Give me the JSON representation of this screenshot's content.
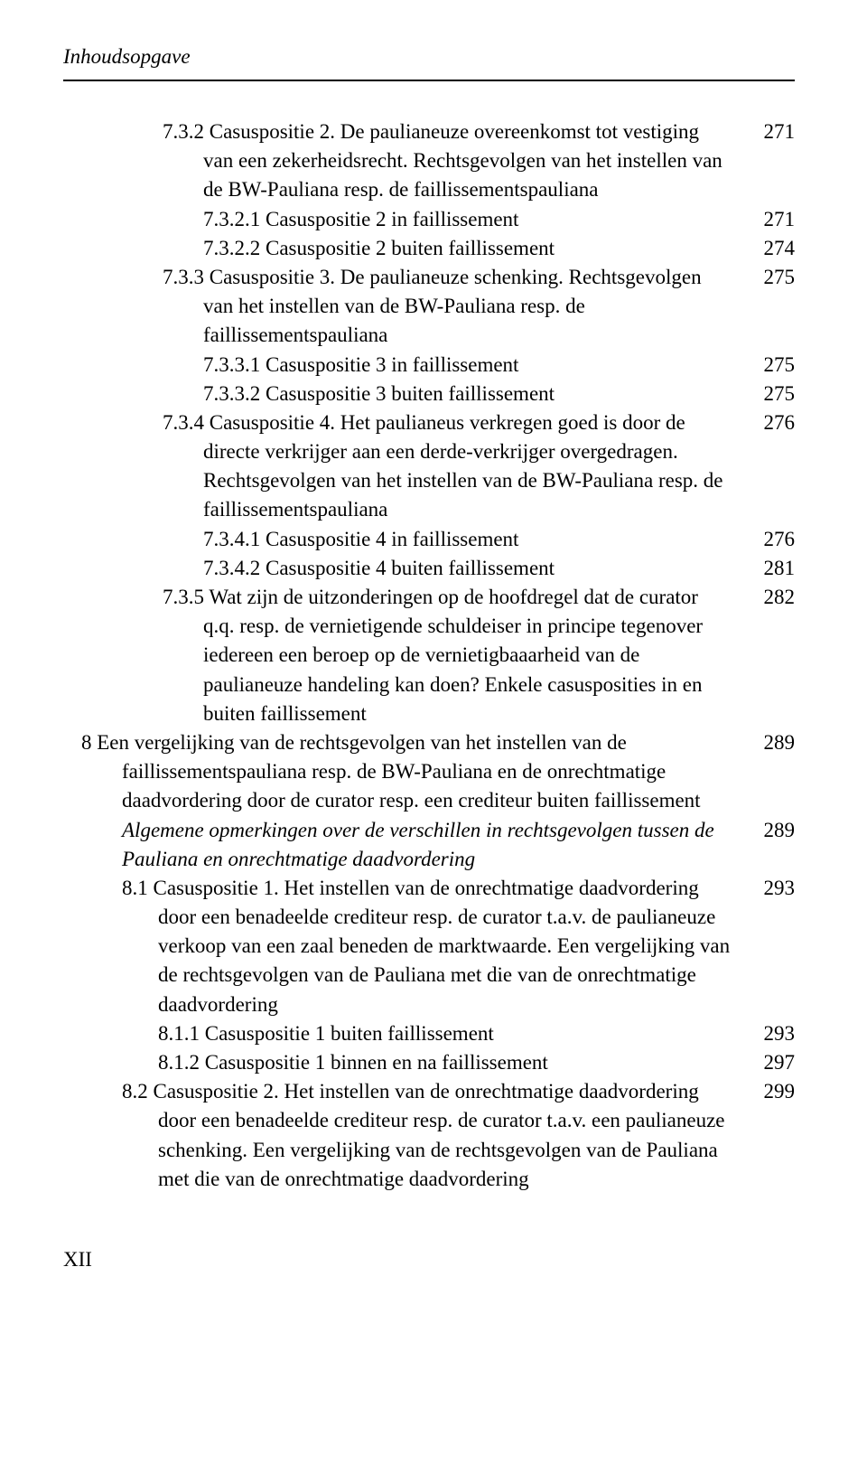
{
  "header": "Inhoudsopgave",
  "entries": [
    {
      "text": "7.3.2 Casuspositie 2. De paulianeuze overeenkomst tot vestiging van een zekerheidsrecht. Rechtsgevolgen van het instellen van de BW-Pauliana resp. de faillissementspauliana",
      "page": "271",
      "class": "hang-indent-1"
    },
    {
      "text": "7.3.2.1 Casuspositie 2 in faillissement",
      "page": "271",
      "class": "indent-2"
    },
    {
      "text": "7.3.2.2 Casuspositie 2 buiten faillissement",
      "page": "274",
      "class": "indent-2"
    },
    {
      "text": "7.3.3 Casuspositie 3. De paulianeuze schenking. Rechtsgevolgen van het instellen van de BW-Pauliana resp. de faillissementspauliana",
      "page": "275",
      "class": "hang-indent-1"
    },
    {
      "text": "7.3.3.1 Casuspositie 3 in faillissement",
      "page": "275",
      "class": "indent-2"
    },
    {
      "text": "7.3.3.2 Casuspositie 3 buiten faillissement",
      "page": "275",
      "class": "indent-2"
    },
    {
      "text": "7.3.4 Casuspositie 4. Het paulianeus verkregen goed is door de directe verkrijger aan een derde-verkrijger overgedragen. Rechtsgevolgen van het instellen van de BW-Pauliana resp. de faillissementspauliana",
      "page": "276",
      "class": "hang-indent-1"
    },
    {
      "text": "7.3.4.1 Casuspositie 4 in faillissement",
      "page": "276",
      "class": "indent-2"
    },
    {
      "text": "7.3.4.2 Casuspositie 4 buiten faillissement",
      "page": "281",
      "class": "indent-2"
    },
    {
      "text": "7.3.5 Wat zijn de uitzonderingen op de hoofdregel dat de curator q.q. resp. de vernietigende schuldeiser in principe tegenover iedereen een beroep op de vernietigbaaarheid van de paulianeuze handeling kan doen? Enkele casusposities in en buiten faillissement",
      "page": "282",
      "class": "hang-indent-1"
    },
    {
      "text": "8   Een vergelijking van de rechtsgevolgen van het instellen van de faillissementspauliana resp. de BW-Pauliana en de onrechtmatige daadvordering door de curator resp. een crediteur buiten faillissement",
      "page": "289",
      "class": "section-8"
    },
    {
      "text": "Algemene opmerkingen over de verschillen in rechtsgevolgen tussen de Pauliana en onrechtmatige daadvordering",
      "page": "289",
      "class": "section-8",
      "italic": true,
      "noIndent": true
    },
    {
      "text": "8.1 Casuspositie 1. Het instellen van de onrechtmatige daadvordering door een benadeelde crediteur resp. de curator t.a.v. de paulianeuze verkoop van een zaal beneden de marktwaarde. Een vergelijking van de rechtsgevolgen van de Pauliana met die van de onrechtmatige daadvordering",
      "page": "293",
      "class": "section-8-sub"
    },
    {
      "text": "8.1.1 Casuspositie 1 buiten faillissement",
      "page": "293",
      "class": "section-8-subsub"
    },
    {
      "text": "8.1.2 Casuspositie 1 binnen en na faillissement",
      "page": "297",
      "class": "section-8-subsub"
    },
    {
      "text": "8.2 Casuspositie 2. Het instellen van de onrechtmatige daadvordering door een benadeelde crediteur resp. de curator t.a.v. een paulianeuze schenking. Een vergelijking van de rechtsgevolgen van de Pauliana met die van de onrechtmatige daadvordering",
      "page": "299",
      "class": "section-8-sub"
    }
  ],
  "footer": "XII"
}
